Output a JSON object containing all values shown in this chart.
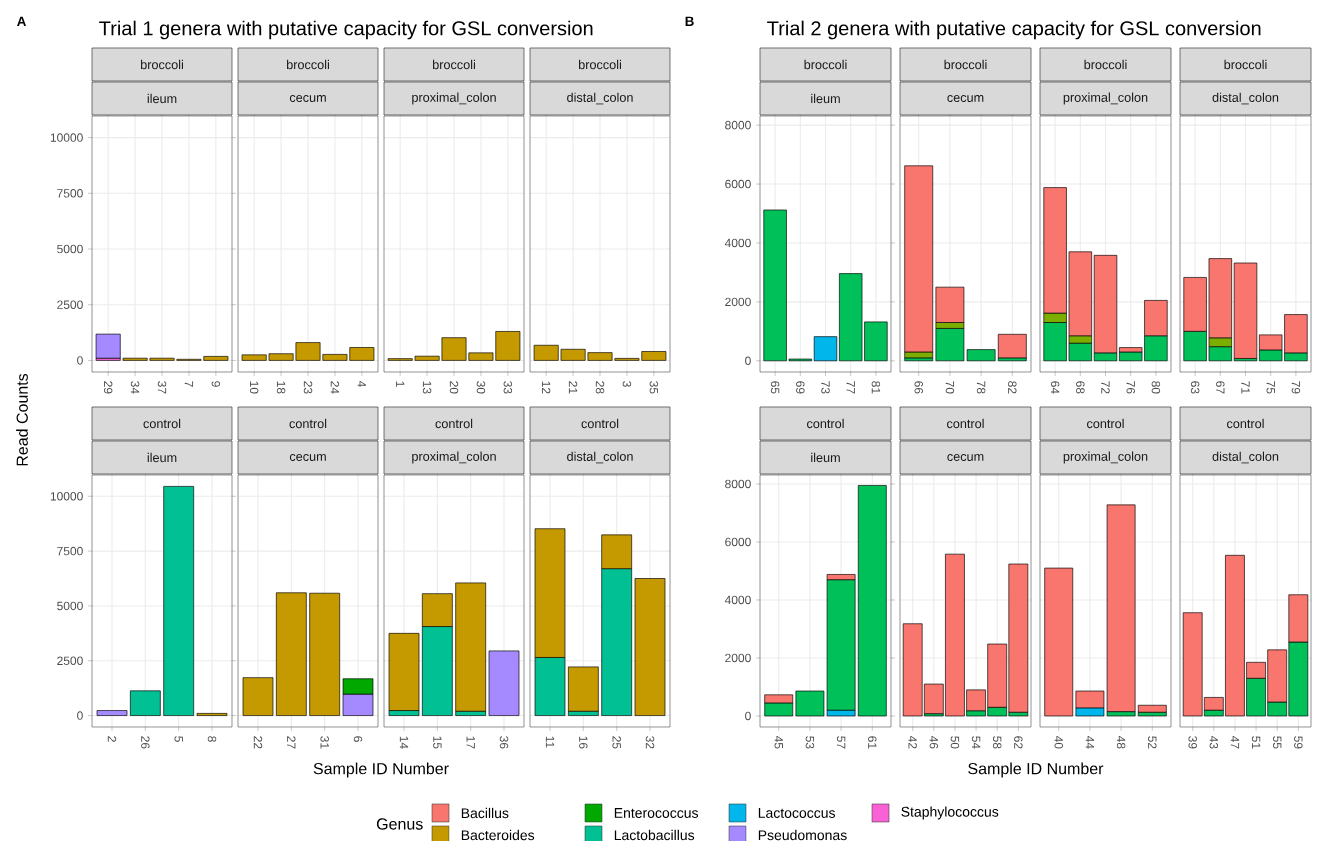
{
  "chart_data": [
    {
      "type": "bar",
      "stacked": true,
      "title": "broccoli",
      "subtitle": "ileum",
      "annotations": [
        "A",
        "Trial 1 genera with putative capacity for GSL conversion"
      ],
      "ylabel": "Read Counts",
      "legend": "bottom",
      "legend_title": "Genus",
      "grid": true,
      "ylim": [
        -520,
        10970
      ],
      "yticks": [
        0,
        2500,
        5000,
        7500,
        10000
      ],
      "categories": [
        "29",
        "34",
        "37",
        "7",
        "9"
      ],
      "series": [
        {
          "name": "Staphylococcus",
          "color": "#fb61d7",
          "values": [
            100,
            null,
            null,
            null,
            null
          ]
        },
        {
          "name": "Pseudomonas",
          "color": "#a58aff",
          "values": [
            1080,
            null,
            null,
            null,
            null
          ]
        },
        {
          "name": "Lactococcus",
          "color": "#00b6eb",
          "values": [
            null,
            null,
            null,
            null,
            null
          ]
        },
        {
          "name": "Lactobacillus",
          "color": "#00c094",
          "values": [
            null,
            null,
            null,
            null,
            null
          ]
        },
        {
          "name": "Enterococcus",
          "color": "#00a800",
          "values": [
            null,
            null,
            null,
            null,
            null
          ]
        },
        {
          "name": "Bacteroides",
          "color": "#c49a00",
          "values": [
            null,
            100,
            100,
            50,
            180
          ]
        },
        {
          "name": "Bacillus",
          "color": "#f8766d",
          "values": [
            null,
            null,
            null,
            null,
            null
          ]
        }
      ]
    },
    {
      "type": "bar",
      "stacked": true,
      "title": "broccoli",
      "subtitle": "cecum",
      "grid": true,
      "tick_labels": "x",
      "ylim": [
        -520,
        10970
      ],
      "yticks": [
        0,
        2500,
        5000,
        7500,
        10000
      ],
      "categories": [
        "10",
        "18",
        "23",
        "24",
        "4"
      ],
      "series": [
        {
          "color": "#c49a00",
          "values": [
            250,
            300,
            800,
            270,
            580
          ]
        }
      ]
    },
    {
      "type": "bar",
      "stacked": true,
      "title": "broccoli",
      "subtitle": "proximal_colon",
      "grid": true,
      "tick_labels": "x",
      "ylim": [
        -520,
        10970
      ],
      "yticks": [
        0,
        2500,
        5000,
        7500,
        10000
      ],
      "categories": [
        "1",
        "13",
        "20",
        "30",
        "33"
      ],
      "series": [
        {
          "color": "#c49a00",
          "values": [
            80,
            190,
            1020,
            340,
            1300
          ]
        }
      ]
    },
    {
      "type": "bar",
      "stacked": true,
      "title": "broccoli",
      "subtitle": "distal_colon",
      "grid": true,
      "tick_labels": "x",
      "ylim": [
        -520,
        10970
      ],
      "yticks": [
        0,
        2500,
        5000,
        7500,
        10000
      ],
      "categories": [
        "12",
        "21",
        "28",
        "3",
        "35"
      ],
      "series": [
        {
          "color": "#c49a00",
          "values": [
            680,
            500,
            350,
            90,
            400
          ]
        }
      ]
    },
    {
      "type": "bar",
      "stacked": true,
      "title": "control",
      "subtitle": "ileum",
      "xlabel": "Sample ID Number",
      "grid": true,
      "ylim": [
        -520,
        10970
      ],
      "yticks": [
        0,
        2500,
        5000,
        7500,
        10000
      ],
      "categories": [
        "2",
        "26",
        "5",
        "8"
      ],
      "series": [
        {
          "color": "#a58aff",
          "values": [
            230,
            null,
            null,
            null
          ]
        },
        {
          "color": "#00c094",
          "values": [
            null,
            1130,
            10450,
            null
          ]
        },
        {
          "color": "#c49a00",
          "values": [
            null,
            null,
            null,
            100
          ]
        }
      ]
    },
    {
      "type": "bar",
      "stacked": true,
      "title": "control",
      "subtitle": "cecum",
      "grid": true,
      "tick_labels": "x",
      "ylim": [
        -520,
        10970
      ],
      "yticks": [
        0,
        2500,
        5000,
        7500,
        10000
      ],
      "categories": [
        "22",
        "27",
        "31",
        "6"
      ],
      "series": [
        {
          "color": "#a58aff",
          "values": [
            null,
            null,
            null,
            980
          ]
        },
        {
          "color": "#00a800",
          "values": [
            null,
            null,
            null,
            700
          ]
        },
        {
          "color": "#c49a00",
          "values": [
            1730,
            5600,
            5580,
            null
          ]
        }
      ]
    },
    {
      "type": "bar",
      "stacked": true,
      "title": "control",
      "subtitle": "proximal_colon",
      "grid": true,
      "tick_labels": "x",
      "ylim": [
        -520,
        10970
      ],
      "yticks": [
        0,
        2500,
        5000,
        7500,
        10000
      ],
      "categories": [
        "14",
        "15",
        "17",
        "36"
      ],
      "series": [
        {
          "color": "#a58aff",
          "values": [
            null,
            null,
            null,
            2950
          ]
        },
        {
          "color": "#00c094",
          "values": [
            230,
            4060,
            200,
            null
          ]
        },
        {
          "color": "#c49a00",
          "values": [
            3520,
            1500,
            5850,
            null
          ]
        }
      ]
    },
    {
      "type": "bar",
      "stacked": true,
      "title": "control",
      "subtitle": "distal_colon",
      "grid": true,
      "tick_labels": "x",
      "ylim": [
        -520,
        10970
      ],
      "yticks": [
        0,
        2500,
        5000,
        7500,
        10000
      ],
      "categories": [
        "11",
        "16",
        "25",
        "32"
      ],
      "series": [
        {
          "color": "#00c094",
          "values": [
            2650,
            200,
            6700,
            null
          ]
        },
        {
          "color": "#c49a00",
          "values": [
            5870,
            2020,
            1540,
            6250
          ]
        }
      ]
    },
    {
      "type": "bar",
      "stacked": true,
      "title": "broccoli",
      "subtitle": "ileum",
      "annotations": [
        "B",
        "Trial 2 genera with putative capacity for GSL conversion"
      ],
      "grid": true,
      "ylim": [
        -380,
        8310
      ],
      "yticks": [
        0,
        2000,
        4000,
        6000,
        8000
      ],
      "categories": [
        "65",
        "69",
        "73",
        "77",
        "81"
      ],
      "series": [
        {
          "color": "#00b6eb",
          "values": [
            null,
            null,
            820,
            null,
            null
          ]
        },
        {
          "color": "#00c05a",
          "values": [
            5120,
            60,
            null,
            2960,
            1320
          ]
        }
      ]
    },
    {
      "type": "bar",
      "stacked": true,
      "title": "broccoli",
      "subtitle": "cecum",
      "grid": true,
      "tick_labels": "x",
      "ylim": [
        -380,
        8310
      ],
      "yticks": [
        0,
        2000,
        4000,
        6000,
        8000
      ],
      "categories": [
        "66",
        "70",
        "78",
        "82"
      ],
      "series": [
        {
          "color": "#00c05a",
          "values": [
            100,
            1100,
            380,
            100
          ]
        },
        {
          "color": "#7cae00",
          "values": [
            200,
            200,
            null,
            null
          ]
        },
        {
          "color": "#f8766d",
          "values": [
            6320,
            1200,
            null,
            800
          ]
        }
      ]
    },
    {
      "type": "bar",
      "stacked": true,
      "title": "broccoli",
      "subtitle": "proximal_colon",
      "grid": true,
      "tick_labels": "x",
      "ylim": [
        -380,
        8310
      ],
      "yticks": [
        0,
        2000,
        4000,
        6000,
        8000
      ],
      "categories": [
        "64",
        "68",
        "72",
        "76",
        "80"
      ],
      "series": [
        {
          "color": "#00c05a",
          "values": [
            1300,
            600,
            270,
            300,
            850
          ]
        },
        {
          "color": "#7cae00",
          "values": [
            320,
            250,
            null,
            null,
            null
          ]
        },
        {
          "color": "#f8766d",
          "values": [
            4260,
            2850,
            3310,
            150,
            1200
          ]
        }
      ]
    },
    {
      "type": "bar",
      "stacked": true,
      "title": "broccoli",
      "subtitle": "distal_colon",
      "grid": true,
      "tick_labels": "x",
      "ylim": [
        -380,
        8310
      ],
      "yticks": [
        0,
        2000,
        4000,
        6000,
        8000
      ],
      "categories": [
        "63",
        "67",
        "71",
        "75",
        "79"
      ],
      "series": [
        {
          "color": "#00c05a",
          "values": [
            1000,
            480,
            80,
            370,
            270
          ]
        },
        {
          "color": "#7cae00",
          "values": [
            null,
            300,
            null,
            null,
            null
          ]
        },
        {
          "color": "#f8766d",
          "values": [
            1830,
            2690,
            3240,
            510,
            1300
          ]
        }
      ]
    },
    {
      "type": "bar",
      "stacked": true,
      "title": "control",
      "subtitle": "ileum",
      "xlabel": "Sample ID Number",
      "grid": true,
      "ylim": [
        -380,
        8310
      ],
      "yticks": [
        0,
        2000,
        4000,
        6000,
        8000
      ],
      "categories": [
        "45",
        "53",
        "57",
        "61"
      ],
      "series": [
        {
          "color": "#00b6eb",
          "values": [
            null,
            null,
            200,
            null
          ]
        },
        {
          "color": "#00c05a",
          "values": [
            450,
            860,
            4500,
            7950
          ]
        },
        {
          "color": "#f8766d",
          "values": [
            280,
            null,
            180,
            null
          ]
        }
      ]
    },
    {
      "type": "bar",
      "stacked": true,
      "title": "control",
      "subtitle": "cecum",
      "grid": true,
      "tick_labels": "x",
      "ylim": [
        -380,
        8310
      ],
      "yticks": [
        0,
        2000,
        4000,
        6000,
        8000
      ],
      "categories": [
        "42",
        "46",
        "50",
        "54",
        "58",
        "62"
      ],
      "series": [
        {
          "color": "#00c05a",
          "values": [
            null,
            80,
            null,
            180,
            300,
            130
          ]
        },
        {
          "color": "#f8766d",
          "values": [
            3180,
            1020,
            5580,
            720,
            2180,
            5110
          ]
        }
      ]
    },
    {
      "type": "bar",
      "stacked": true,
      "title": "control",
      "subtitle": "proximal_colon",
      "grid": true,
      "tick_labels": "x",
      "ylim": [
        -380,
        8310
      ],
      "yticks": [
        0,
        2000,
        4000,
        6000,
        8000
      ],
      "categories": [
        "40",
        "44",
        "48",
        "52"
      ],
      "series": [
        {
          "color": "#00b6eb",
          "values": [
            null,
            280,
            null,
            null
          ]
        },
        {
          "color": "#00c05a",
          "values": [
            null,
            null,
            150,
            130
          ]
        },
        {
          "color": "#f8766d",
          "values": [
            5100,
            580,
            7130,
            240
          ]
        }
      ]
    },
    {
      "type": "bar",
      "stacked": true,
      "title": "control",
      "subtitle": "distal_colon",
      "grid": true,
      "tick_labels": "x",
      "ylim": [
        -380,
        8310
      ],
      "yticks": [
        0,
        2000,
        4000,
        6000,
        8000
      ],
      "categories": [
        "39",
        "43",
        "47",
        "51",
        "55",
        "59"
      ],
      "series": [
        {
          "color": "#00c05a",
          "values": [
            null,
            200,
            null,
            1300,
            480,
            2550
          ]
        },
        {
          "color": "#f8766d",
          "values": [
            3560,
            440,
            5540,
            550,
            1800,
            1630
          ]
        }
      ]
    }
  ]
}
